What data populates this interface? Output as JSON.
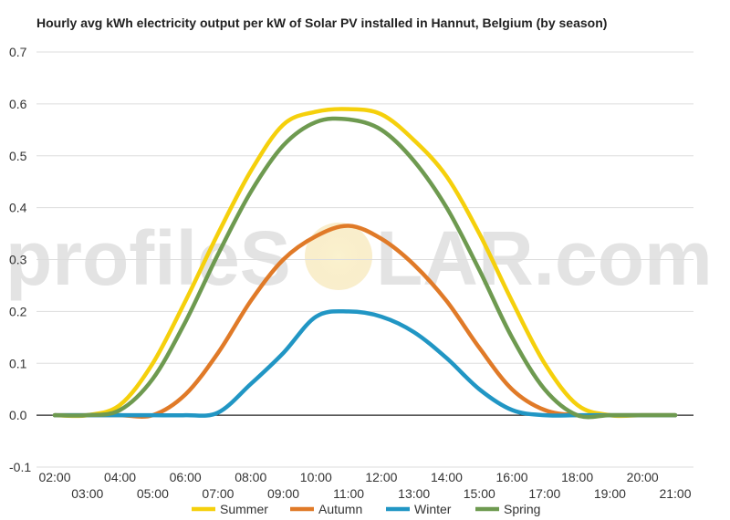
{
  "watermark": {
    "left": "profileS",
    "right": "LAR.com"
  },
  "chart_data": {
    "type": "line",
    "title": "Hourly avg kWh electricity output per kW of Solar PV installed in Hannut, Belgium (by season)",
    "xlabel": "",
    "ylabel": "",
    "x": [
      2,
      3,
      4,
      5,
      6,
      7,
      8,
      9,
      10,
      11,
      12,
      13,
      14,
      15,
      16,
      17,
      18,
      19,
      20,
      21
    ],
    "x_tick_labels": [
      "02:00",
      "03:00",
      "04:00",
      "05:00",
      "06:00",
      "07:00",
      "08:00",
      "09:00",
      "10:00",
      "11:00",
      "12:00",
      "13:00",
      "14:00",
      "15:00",
      "16:00",
      "17:00",
      "18:00",
      "19:00",
      "20:00",
      "21:00"
    ],
    "xlim": [
      2,
      21
    ],
    "ylim": [
      -0.1,
      0.7
    ],
    "yticks": [
      -0.1,
      0.0,
      0.1,
      0.2,
      0.3,
      0.4,
      0.5,
      0.6,
      0.7
    ],
    "ytick_labels": [
      "-0.1",
      "0.0",
      "0.1",
      "0.2",
      "0.3",
      "0.4",
      "0.5",
      "0.6",
      "0.7"
    ],
    "grid": true,
    "legend": "bottom",
    "series": [
      {
        "name": "Summer",
        "color": "#f5d00c",
        "values": [
          0.0,
          0.0,
          0.02,
          0.1,
          0.22,
          0.35,
          0.47,
          0.56,
          0.585,
          0.59,
          0.58,
          0.53,
          0.46,
          0.35,
          0.22,
          0.1,
          0.02,
          0.0,
          0.0,
          0.0
        ]
      },
      {
        "name": "Autumn",
        "color": "#e07a28",
        "values": [
          0.0,
          0.0,
          0.0,
          0.0,
          0.04,
          0.12,
          0.22,
          0.3,
          0.345,
          0.365,
          0.34,
          0.29,
          0.22,
          0.13,
          0.05,
          0.01,
          0.0,
          0.0,
          0.0,
          0.0
        ]
      },
      {
        "name": "Winter",
        "color": "#2196c4",
        "values": [
          0.0,
          0.0,
          0.0,
          0.0,
          0.0,
          0.005,
          0.06,
          0.12,
          0.19,
          0.2,
          0.19,
          0.16,
          0.11,
          0.05,
          0.01,
          0.0,
          0.0,
          0.0,
          0.0,
          0.0
        ]
      },
      {
        "name": "Spring",
        "color": "#6e9a50",
        "values": [
          0.0,
          0.0,
          0.01,
          0.07,
          0.18,
          0.31,
          0.43,
          0.52,
          0.565,
          0.57,
          0.55,
          0.49,
          0.4,
          0.28,
          0.15,
          0.05,
          0.0,
          0.0,
          0.0,
          0.0
        ]
      }
    ]
  }
}
